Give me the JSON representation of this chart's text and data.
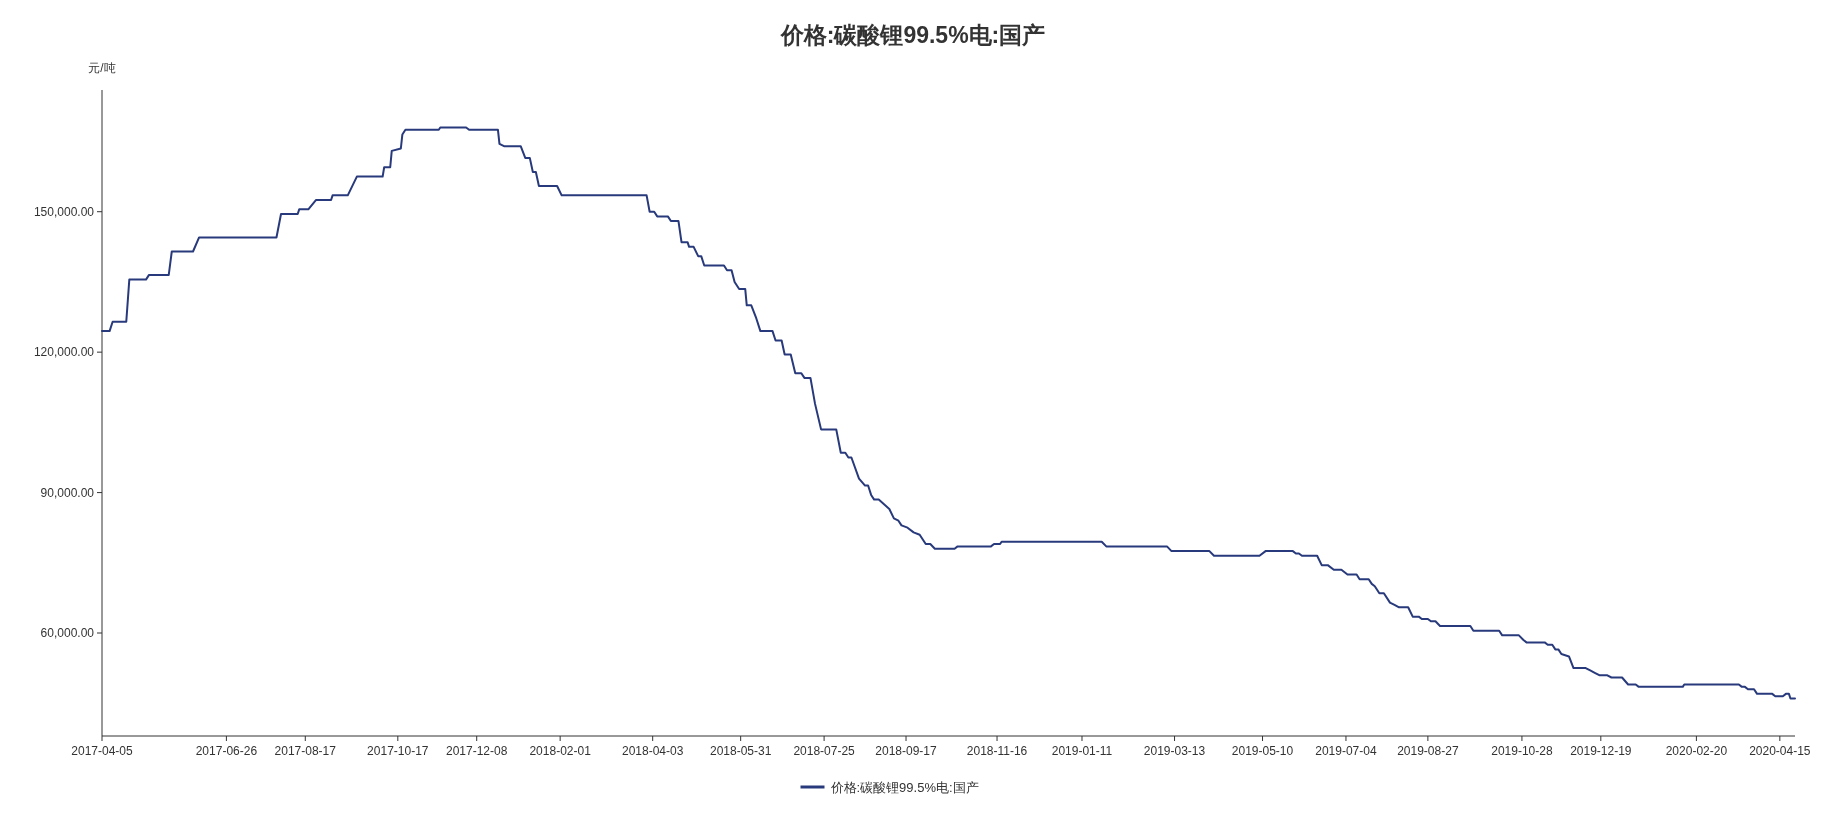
{
  "chart_data": {
    "type": "line",
    "title": "价格:碳酸锂99.5%电:国产",
    "ylabel": "元/吨",
    "xlim": [
      "2017-04-05",
      "2020-04-25"
    ],
    "xticks": [
      "2017-04-05",
      "2017-06-26",
      "2017-08-17",
      "2017-10-17",
      "2017-12-08",
      "2018-02-01",
      "2018-04-03",
      "2018-05-31",
      "2018-07-25",
      "2018-09-17",
      "2018-11-16",
      "2019-01-11",
      "2019-03-13",
      "2019-05-10",
      "2019-07-04",
      "2019-08-27",
      "2019-10-28",
      "2019-12-19",
      "2020-02-20",
      "2020-04-15"
    ],
    "ylim": [
      38000,
      176000
    ],
    "yticks": [
      {
        "value": 60000,
        "label": "60,000.00"
      },
      {
        "value": 90000,
        "label": "90,000.00"
      },
      {
        "value": 120000,
        "label": "120,000.00"
      },
      {
        "value": 150000,
        "label": "150,000.00"
      }
    ],
    "legend": "bottom",
    "series": [
      {
        "name": "价格:碳酸锂99.5%电:国产",
        "color": "#283a7c",
        "x": [
          "2017-04-05",
          "2017-04-10",
          "2017-04-12",
          "2017-04-21",
          "2017-04-23",
          "2017-05-04",
          "2017-05-06",
          "2017-05-19",
          "2017-05-21",
          "2017-06-04",
          "2017-06-08",
          "2017-07-29",
          "2017-08-01",
          "2017-08-12",
          "2017-08-13",
          "2017-08-19",
          "2017-08-24",
          "2017-09-03",
          "2017-09-04",
          "2017-09-14",
          "2017-09-20",
          "2017-10-07",
          "2017-10-08",
          "2017-10-12",
          "2017-10-13",
          "2017-10-19",
          "2017-10-20",
          "2017-10-22",
          "2017-11-13",
          "2017-11-14",
          "2017-12-01",
          "2017-12-03",
          "2017-12-22",
          "2017-12-23",
          "2017-12-26",
          "2018-01-06",
          "2018-01-09",
          "2018-01-12",
          "2018-01-14",
          "2018-01-16",
          "2018-01-18",
          "2018-01-30",
          "2018-02-02",
          "2018-03-30",
          "2018-04-01",
          "2018-04-04",
          "2018-04-06",
          "2018-04-13",
          "2018-04-15",
          "2018-04-20",
          "2018-04-22",
          "2018-04-26",
          "2018-04-27",
          "2018-04-30",
          "2018-05-03",
          "2018-05-05",
          "2018-05-07",
          "2018-05-20",
          "2018-05-22",
          "2018-05-25",
          "2018-05-27",
          "2018-05-30",
          "2018-06-03",
          "2018-06-04",
          "2018-06-07",
          "2018-06-10",
          "2018-06-13",
          "2018-06-21",
          "2018-06-23",
          "2018-06-27",
          "2018-06-29",
          "2018-07-03",
          "2018-07-06",
          "2018-07-10",
          "2018-07-12",
          "2018-07-16",
          "2018-07-19",
          "2018-07-23",
          "2018-08-02",
          "2018-08-05",
          "2018-08-08",
          "2018-08-10",
          "2018-08-12",
          "2018-08-17",
          "2018-08-21",
          "2018-08-23",
          "2018-08-25",
          "2018-08-27",
          "2018-08-30",
          "2018-09-06",
          "2018-09-09",
          "2018-09-12",
          "2018-09-14",
          "2018-09-18",
          "2018-09-22",
          "2018-09-26",
          "2018-09-30",
          "2018-10-03",
          "2018-10-06",
          "2018-10-19",
          "2018-10-21",
          "2018-11-12",
          "2018-11-14",
          "2018-11-18",
          "2018-11-19",
          "2019-01-24",
          "2019-01-27",
          "2019-03-08",
          "2019-03-11",
          "2019-04-05",
          "2019-04-08",
          "2019-05-08",
          "2019-05-12",
          "2019-05-30",
          "2019-06-01",
          "2019-06-03",
          "2019-06-05",
          "2019-06-15",
          "2019-06-18",
          "2019-06-22",
          "2019-06-26",
          "2019-07-01",
          "2019-07-05",
          "2019-07-11",
          "2019-07-13",
          "2019-07-19",
          "2019-07-21",
          "2019-07-23",
          "2019-07-26",
          "2019-07-29",
          "2019-08-02",
          "2019-08-05",
          "2019-08-08",
          "2019-08-14",
          "2019-08-17",
          "2019-08-21",
          "2019-08-23",
          "2019-08-27",
          "2019-08-29",
          "2019-09-01",
          "2019-09-04",
          "2019-09-24",
          "2019-09-26",
          "2019-10-13",
          "2019-10-15",
          "2019-10-26",
          "2019-10-29",
          "2019-10-31",
          "2019-11-12",
          "2019-11-14",
          "2019-11-17",
          "2019-11-19",
          "2019-11-21",
          "2019-11-23",
          "2019-11-28",
          "2019-12-01",
          "2019-12-09",
          "2019-12-12",
          "2019-12-15",
          "2019-12-18",
          "2019-12-23",
          "2019-12-26",
          "2020-01-02",
          "2020-01-06",
          "2020-01-11",
          "2020-01-13",
          "2020-02-11",
          "2020-02-12",
          "2020-03-19",
          "2020-03-21",
          "2020-03-23",
          "2020-03-25",
          "2020-03-29",
          "2020-03-31",
          "2020-04-02",
          "2020-04-03",
          "2020-04-10",
          "2020-04-12",
          "2020-04-17",
          "2020-04-19",
          "2020-04-21",
          "2020-04-22",
          "2020-04-25"
        ],
        "values": [
          124500,
          124500,
          126500,
          126500,
          135500,
          135500,
          136500,
          136500,
          141500,
          141500,
          144500,
          144500,
          149500,
          149500,
          150500,
          150500,
          152500,
          152500,
          153500,
          153500,
          157500,
          157500,
          159500,
          159500,
          163000,
          163500,
          166500,
          167500,
          167500,
          168000,
          168000,
          167500,
          167500,
          164500,
          164000,
          164000,
          161500,
          161500,
          158500,
          158500,
          155500,
          155500,
          153500,
          153500,
          150000,
          150000,
          149000,
          149000,
          148000,
          148000,
          143500,
          143500,
          142500,
          142500,
          140500,
          140500,
          138500,
          138500,
          137500,
          137500,
          135000,
          133500,
          133500,
          130000,
          130000,
          127500,
          124500,
          124500,
          122500,
          122500,
          119500,
          119500,
          115500,
          115500,
          114500,
          114500,
          109000,
          103500,
          103500,
          98500,
          98500,
          97500,
          97500,
          93000,
          91500,
          91500,
          89500,
          88500,
          88500,
          86500,
          84500,
          84000,
          83000,
          82500,
          81500,
          81000,
          79000,
          79000,
          78000,
          78000,
          78500,
          78500,
          79000,
          79000,
          79500,
          79500,
          78500,
          78500,
          77500,
          77500,
          76500,
          76500,
          77500,
          77500,
          77000,
          77000,
          76500,
          76500,
          74500,
          74500,
          73500,
          73500,
          72500,
          72500,
          71500,
          71500,
          70500,
          70000,
          68500,
          68500,
          66500,
          66000,
          65500,
          65500,
          63500,
          63500,
          63000,
          63000,
          62500,
          62500,
          61500,
          61500,
          60500,
          60500,
          59500,
          59500,
          58500,
          58000,
          58000,
          57500,
          57500,
          56500,
          56500,
          55500,
          55000,
          52500,
          52500,
          52000,
          51500,
          51000,
          51000,
          50500,
          50500,
          49000,
          49000,
          48500,
          48500,
          49000,
          49000,
          48500,
          48500,
          48000,
          48000,
          47000,
          47000,
          47000,
          47000,
          46500,
          46500,
          47000,
          47000,
          46000,
          46000
        ]
      }
    ]
  }
}
